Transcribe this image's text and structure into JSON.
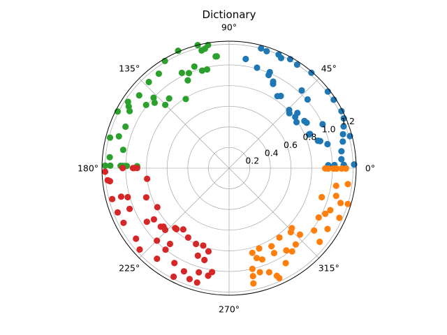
{
  "chart_data": {
    "type": "scatter",
    "projection": "polar",
    "title": "Dictionary",
    "theta_unit": "radians",
    "theta_tick_labels": [
      "0°",
      "45°",
      "90°",
      "135°",
      "180°",
      "225°",
      "270°",
      "315°"
    ],
    "r_tick_labels": [
      "0.2",
      "0.4",
      "0.6",
      "0.8",
      "1.0",
      "1.2"
    ],
    "r_ticks": [
      0.2,
      0.4,
      0.6,
      0.8,
      1.0,
      1.2
    ],
    "rlim": [
      0,
      1.23
    ],
    "grid": true,
    "legend": "none",
    "series": [
      {
        "color": "#1f77b4",
        "points": [
          [
            0.47,
            1.22
          ],
          [
            0.41,
            1.21
          ],
          [
            0.35,
            1.18
          ],
          [
            0.29,
            1.15
          ],
          [
            0.23,
            1.13
          ],
          [
            0.15,
            1.1
          ],
          [
            0.08,
            1.09
          ],
          [
            0.03,
            1.21
          ],
          [
            0.0,
            1.13
          ],
          [
            0.0,
            1.02
          ],
          [
            0.03,
            1.02
          ],
          [
            0.03,
            0.96
          ],
          [
            0.03,
            1.11
          ],
          [
            0.24,
            0.98
          ],
          [
            0.29,
            0.92
          ],
          [
            0.3,
            0.9
          ],
          [
            0.4,
            0.84
          ],
          [
            0.4,
            0.85
          ],
          [
            0.44,
            1.0
          ],
          [
            0.53,
            0.87
          ],
          [
            0.56,
            0.86
          ],
          [
            0.6,
            0.79
          ],
          [
            0.66,
            0.81
          ],
          [
            0.68,
            0.85
          ],
          [
            0.74,
            0.79
          ],
          [
            0.77,
            0.81
          ],
          [
            0.72,
            1.01
          ],
          [
            0.82,
            1.03
          ],
          [
            0.95,
            0.86
          ],
          [
            0.98,
            0.84
          ],
          [
            1.09,
            0.92
          ],
          [
            1.1,
            0.94
          ],
          [
            1.17,
            0.98
          ],
          [
            1.17,
            1.01
          ],
          [
            1.3,
            1.01
          ],
          [
            1.42,
            1.07
          ],
          [
            1.26,
            1.19
          ],
          [
            1.31,
            1.2
          ],
          [
            1.16,
            1.2
          ],
          [
            1.13,
            1.18
          ],
          [
            1.06,
            1.21
          ],
          [
            0.99,
            1.2
          ],
          [
            0.86,
            1.22
          ],
          [
            0.66,
            1.21
          ],
          [
            0.58,
            1.21
          ],
          [
            0.26,
            1.21
          ]
        ]
      },
      {
        "color": "#2ca02c",
        "points": [
          [
            1.68,
            1.09
          ],
          [
            1.9,
            1.04
          ],
          [
            1.97,
            1.0
          ],
          [
            2.01,
            0.94
          ],
          [
            1.79,
            0.98
          ],
          [
            1.84,
            0.98
          ],
          [
            2.03,
            1.03
          ],
          [
            2.13,
            0.79
          ],
          [
            2.28,
            0.89
          ],
          [
            2.36,
            0.87
          ],
          [
            2.39,
            1.0
          ],
          [
            2.42,
            0.96
          ],
          [
            2.56,
            1.17
          ],
          [
            2.62,
            1.11
          ],
          [
            2.67,
            1.21
          ],
          [
            2.76,
            1.08
          ],
          [
            2.89,
            1.19
          ],
          [
            2.86,
            1.11
          ],
          [
            2.97,
            1.04
          ],
          [
            3.05,
            1.16
          ],
          [
            3.12,
            0.99
          ],
          [
            3.12,
            1.01
          ],
          [
            3.12,
            1.03
          ],
          [
            3.12,
            1.05
          ],
          [
            3.12,
            0.89
          ],
          [
            3.12,
            0.89
          ],
          [
            3.12,
            1.15
          ],
          [
            3.12,
            1.2
          ],
          [
            1.74,
            1.21
          ],
          [
            1.82,
            1.23
          ],
          [
            1.98,
            1.24
          ],
          [
            2.11,
            1.21
          ],
          [
            2.21,
            1.14
          ],
          [
            2.32,
            1.14
          ],
          [
            2.46,
            1.12
          ],
          [
            2.59,
            1.14
          ],
          [
            2.49,
            1.01
          ],
          [
            1.69,
            1.09
          ],
          [
            1.8,
            1.17
          ],
          [
            1.77,
            1.18
          ]
        ]
      },
      {
        "color": "#d62728",
        "points": [
          [
            3.14,
            1.03
          ],
          [
            3.14,
            1.03
          ],
          [
            3.14,
            0.93
          ],
          [
            3.14,
            0.89
          ],
          [
            3.14,
            0.92
          ],
          [
            3.27,
            0.8
          ],
          [
            3.48,
            0.85
          ],
          [
            3.64,
            0.79
          ],
          [
            3.87,
            0.85
          ],
          [
            3.91,
            0.86
          ],
          [
            4.0,
            0.78
          ],
          [
            4.07,
            0.74
          ],
          [
            4.18,
            0.78
          ],
          [
            4.3,
            0.8
          ],
          [
            4.39,
            0.79
          ],
          [
            4.47,
            0.83
          ],
          [
            4.37,
            0.9
          ],
          [
            4.45,
            0.92
          ],
          [
            4.55,
            1.02
          ],
          [
            4.43,
            1.05
          ],
          [
            4.37,
            1.14
          ],
          [
            4.24,
            1.18
          ],
          [
            4.04,
            1.12
          ],
          [
            3.88,
            1.17
          ],
          [
            3.79,
            1.13
          ],
          [
            3.62,
            1.15
          ],
          [
            3.52,
            1.16
          ],
          [
            3.4,
            1.17
          ],
          [
            3.25,
            1.16
          ],
          [
            3.17,
            1.2
          ],
          [
            3.24,
            1.18
          ],
          [
            3.53,
            1.04
          ],
          [
            3.72,
            0.95
          ],
          [
            3.74,
            0.88
          ],
          [
            3.93,
            0.99
          ],
          [
            4.05,
            0.93
          ],
          [
            4.19,
            1.06
          ],
          [
            4.52,
            1.06
          ],
          [
            4.3,
            1.09
          ],
          [
            4.44,
            1.15
          ],
          [
            4.05,
            1.0
          ],
          [
            3.98,
            0.78
          ],
          [
            3.85,
            0.87
          ],
          [
            3.4,
            1.08
          ],
          [
            3.42,
            1.02
          ]
        ]
      },
      {
        "color": "#ff7f0e",
        "points": [
          [
            6.28,
            0.93
          ],
          [
            6.28,
            0.96
          ],
          [
            6.28,
            1.01
          ],
          [
            6.28,
            1.04
          ],
          [
            6.28,
            1.09
          ],
          [
            6.28,
            1.13
          ],
          [
            6.15,
            1.16
          ],
          [
            6.03,
            1.07
          ],
          [
            5.98,
            1.13
          ],
          [
            5.89,
            1.06
          ],
          [
            5.84,
            1.03
          ],
          [
            5.73,
            1.12
          ],
          [
            5.65,
            1.02
          ],
          [
            5.53,
            0.94
          ],
          [
            5.48,
            0.86
          ],
          [
            5.52,
            0.84
          ],
          [
            5.34,
            0.83
          ],
          [
            5.21,
            0.86
          ],
          [
            5.07,
            0.83
          ],
          [
            4.98,
            0.85
          ],
          [
            5.01,
            0.91
          ],
          [
            5.06,
            0.94
          ],
          [
            4.94,
            1.0
          ],
          [
            5.0,
            1.05
          ],
          [
            5.08,
            1.08
          ],
          [
            5.13,
            1.14
          ],
          [
            5.14,
            1.17
          ],
          [
            5.25,
            1.07
          ],
          [
            5.6,
            1.13
          ],
          [
            5.78,
            0.99
          ],
          [
            5.86,
            1.17
          ],
          [
            5.99,
            1.2
          ],
          [
            6.12,
            1.05
          ],
          [
            5.98,
            0.94
          ],
          [
            5.32,
            0.97
          ],
          [
            5.2,
            0.93
          ],
          [
            5.36,
            1.01
          ],
          [
            5.43,
            0.98
          ],
          [
            4.92,
            1.14
          ],
          [
            4.93,
            1.07
          ]
        ]
      }
    ]
  }
}
